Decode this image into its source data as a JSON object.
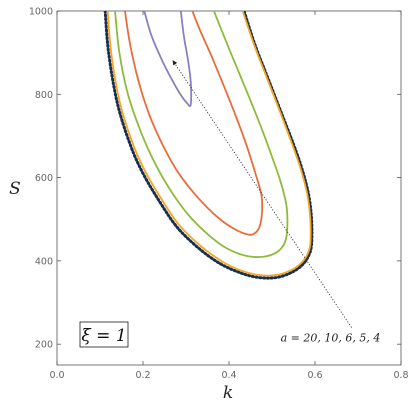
{
  "chart_data": {
    "type": "line",
    "title": "",
    "xlabel": "k",
    "ylabel": "S",
    "xlim": [
      0.0,
      0.8
    ],
    "ylim": [
      150,
      1000
    ],
    "xticks": [
      0.0,
      0.2,
      0.4,
      0.6,
      0.8
    ],
    "xtick_labels": [
      "0.0",
      "0.2",
      "0.4",
      "0.6",
      "0.8"
    ],
    "yticks": [
      200,
      400,
      600,
      800,
      1000
    ],
    "ytick_labels": [
      "200",
      "400",
      "600",
      "800",
      "1000"
    ],
    "grid": false,
    "box_label": "ξ = 1",
    "annotation": {
      "text": "a = 20, 10, 6, 5, 4",
      "arrow_from": [
        0.685,
        240
      ],
      "arrow_to": [
        0.27,
        880
      ],
      "label_at": [
        0.52,
        207
      ]
    },
    "series": [
      {
        "color": "#1a2f4e",
        "dashed": true,
        "points": [
          [
            0.112,
            1000
          ],
          [
            0.12,
            900
          ],
          [
            0.14,
            780
          ],
          [
            0.17,
            680
          ],
          [
            0.2,
            610
          ],
          [
            0.24,
            540
          ],
          [
            0.28,
            480
          ],
          [
            0.33,
            430
          ],
          [
            0.38,
            393
          ],
          [
            0.43,
            370
          ],
          [
            0.47,
            360
          ],
          [
            0.51,
            360
          ],
          [
            0.545,
            372
          ],
          [
            0.57,
            390
          ],
          [
            0.585,
            412
          ],
          [
            0.592,
            440
          ],
          [
            0.592,
            500
          ],
          [
            0.585,
            560
          ],
          [
            0.57,
            620
          ],
          [
            0.55,
            680
          ],
          [
            0.52,
            760
          ],
          [
            0.49,
            840
          ],
          [
            0.46,
            920
          ],
          [
            0.435,
            1000
          ]
        ]
      },
      {
        "color": "#f5a623",
        "points": [
          [
            0.118,
            1000
          ],
          [
            0.126,
            900
          ],
          [
            0.145,
            785
          ],
          [
            0.175,
            685
          ],
          [
            0.205,
            615
          ],
          [
            0.245,
            545
          ],
          [
            0.285,
            485
          ],
          [
            0.335,
            435
          ],
          [
            0.385,
            398
          ],
          [
            0.43,
            376
          ],
          [
            0.47,
            366
          ],
          [
            0.51,
            366
          ],
          [
            0.545,
            378
          ],
          [
            0.568,
            395
          ],
          [
            0.582,
            415
          ],
          [
            0.589,
            440
          ],
          [
            0.589,
            500
          ],
          [
            0.582,
            560
          ],
          [
            0.567,
            620
          ],
          [
            0.547,
            680
          ],
          [
            0.518,
            760
          ],
          [
            0.488,
            840
          ],
          [
            0.458,
            920
          ],
          [
            0.432,
            1000
          ]
        ]
      },
      {
        "color": "#8dbb3a",
        "points": [
          [
            0.135,
            1000
          ],
          [
            0.145,
            900
          ],
          [
            0.165,
            800
          ],
          [
            0.195,
            710
          ],
          [
            0.23,
            630
          ],
          [
            0.27,
            560
          ],
          [
            0.31,
            505
          ],
          [
            0.355,
            460
          ],
          [
            0.395,
            430
          ],
          [
            0.44,
            412
          ],
          [
            0.48,
            410
          ],
          [
            0.51,
            420
          ],
          [
            0.528,
            440
          ],
          [
            0.535,
            470
          ],
          [
            0.534,
            530
          ],
          [
            0.52,
            590
          ],
          [
            0.5,
            650
          ],
          [
            0.475,
            720
          ],
          [
            0.448,
            790
          ],
          [
            0.42,
            860
          ],
          [
            0.392,
            930
          ],
          [
            0.365,
            1000
          ]
        ]
      },
      {
        "color": "#ea6c3a",
        "points": [
          [
            0.158,
            1000
          ],
          [
            0.17,
            920
          ],
          [
            0.19,
            830
          ],
          [
            0.215,
            750
          ],
          [
            0.245,
            680
          ],
          [
            0.28,
            615
          ],
          [
            0.325,
            555
          ],
          [
            0.37,
            508
          ],
          [
            0.41,
            478
          ],
          [
            0.445,
            463
          ],
          [
            0.462,
            468
          ],
          [
            0.472,
            485
          ],
          [
            0.477,
            520
          ],
          [
            0.475,
            560
          ],
          [
            0.46,
            615
          ],
          [
            0.44,
            680
          ],
          [
            0.415,
            750
          ],
          [
            0.388,
            820
          ],
          [
            0.36,
            890
          ],
          [
            0.33,
            960
          ],
          [
            0.315,
            1000
          ]
        ]
      },
      {
        "color": "#8a80bd",
        "points": [
          [
            0.203,
            1000
          ],
          [
            0.22,
            940
          ],
          [
            0.245,
            880
          ],
          [
            0.27,
            830
          ],
          [
            0.29,
            795
          ],
          [
            0.303,
            778
          ],
          [
            0.31,
            772
          ],
          [
            0.312,
            790
          ],
          [
            0.311,
            830
          ],
          [
            0.305,
            880
          ],
          [
            0.295,
            940
          ],
          [
            0.288,
            1000
          ]
        ]
      }
    ]
  }
}
